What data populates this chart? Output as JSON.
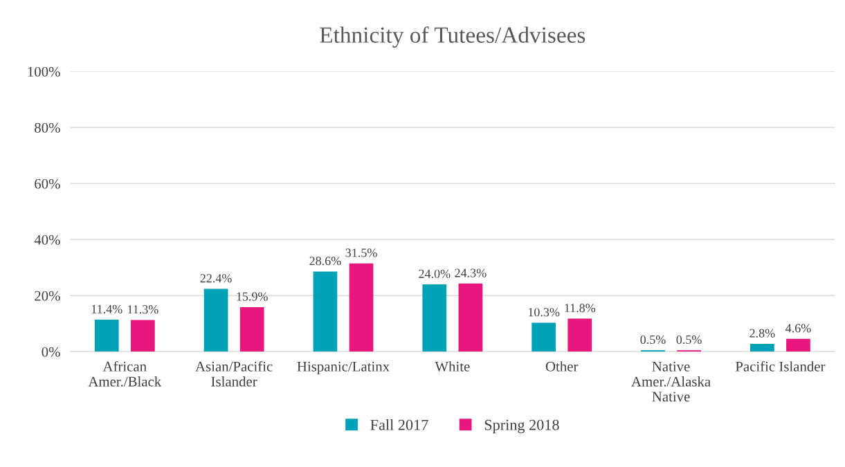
{
  "chart_data": {
    "type": "bar",
    "title": "Ethnicity of Tutees/Advisees",
    "categories": [
      "African Amer./Black",
      "Asian/Pacific Islander",
      "Hispanic/Latinx",
      "White",
      "Other",
      "Native Amer./Alaska Native",
      "Pacific Islander"
    ],
    "series": [
      {
        "name": "Fall 2017",
        "color": "#00a2b8",
        "values": [
          11.4,
          22.4,
          28.6,
          24.0,
          10.3,
          0.5,
          2.8
        ],
        "value_labels": [
          "11.4%",
          "22.4%",
          "28.6%",
          "24.0%",
          "10.3%",
          "0.5%",
          "2.8%"
        ]
      },
      {
        "name": "Spring 2018",
        "color": "#e8177d",
        "values": [
          11.3,
          15.9,
          31.5,
          24.3,
          11.8,
          0.5,
          4.6
        ],
        "value_labels": [
          "11.3%",
          "15.9%",
          "31.5%",
          "24.3%",
          "11.8%",
          "0.5%",
          "4.6%"
        ]
      }
    ],
    "ylim": [
      0,
      100
    ],
    "yticks": [
      {
        "value": 0,
        "label": "0%"
      },
      {
        "value": 20,
        "label": "20%"
      },
      {
        "value": 40,
        "label": "40%"
      },
      {
        "value": 60,
        "label": "60%"
      },
      {
        "value": 80,
        "label": "80%"
      },
      {
        "value": 100,
        "label": "100%"
      }
    ],
    "grid": "y",
    "legend": "bottom"
  }
}
